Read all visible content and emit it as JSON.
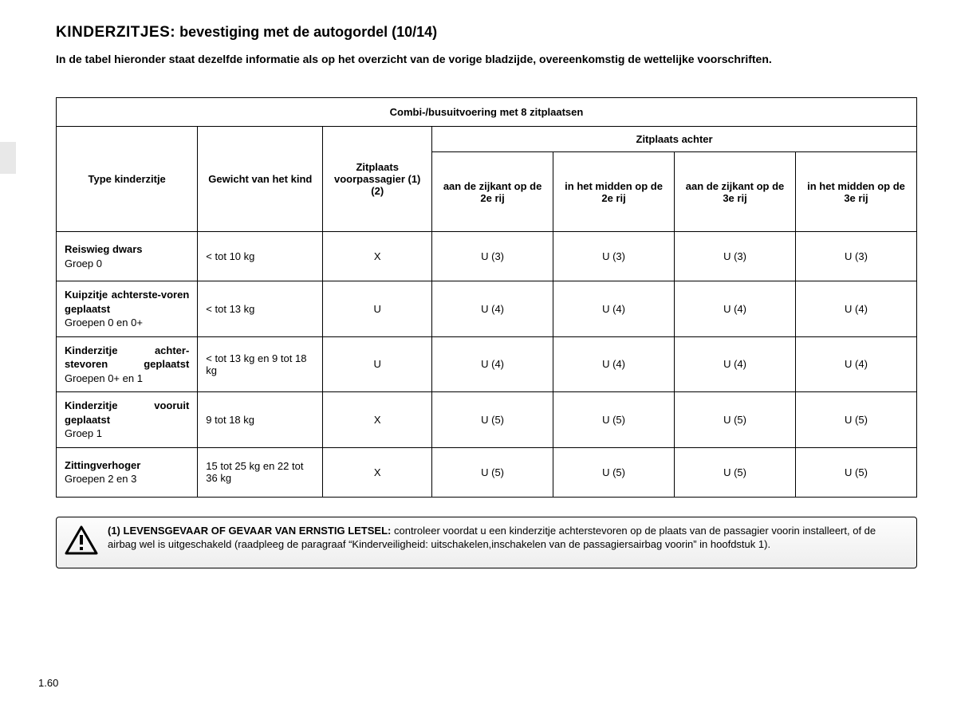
{
  "title": {
    "bold": "KINDERZITJES:",
    "rest": " bevestiging met de autogordel (10/14)"
  },
  "intro": "In de tabel hieronder staat dezelfde informatie als op het overzicht van de vorige bladzijde, overeenkomstig de wettelijke voorschriften.",
  "table": {
    "caption": "Combi-/busuitvoering met 8 zitplaatsen",
    "headers": {
      "type": "Type kinderzitje",
      "weight": "Gewicht van het kind",
      "front": "Zitplaats voorpassagier (1) (2)",
      "rear_group": "Zitplaats achter",
      "rear": [
        "aan de zijkant op de 2e rij",
        "in het midden op de 2e rij",
        "aan de zijkant op de 3e rij",
        "in het midden op de 3e rij"
      ]
    },
    "rows": [
      {
        "type_bold": "Reiswieg dwars",
        "type_sub": "Groep 0",
        "justify": false,
        "weight": "< tot 10 kg",
        "front": "X",
        "rear": [
          "U (3)",
          "U (3)",
          "U (3)",
          "U (3)"
        ]
      },
      {
        "type_bold": "Kuipzitje achterste-voren geplaatst",
        "type_sub": "Groepen 0 en 0+",
        "justify": true,
        "weight": "< tot 13 kg",
        "front": "U",
        "rear": [
          "U (4)",
          "U (4)",
          "U (4)",
          "U (4)"
        ]
      },
      {
        "type_bold": "Kinderzitje achter-stevoren geplaatst",
        "type_sub": "Groepen 0+ en 1",
        "justify": true,
        "weight": "< tot 13 kg en 9 tot 18 kg",
        "front": "U",
        "rear": [
          "U (4)",
          "U (4)",
          "U (4)",
          "U (4)"
        ]
      },
      {
        "type_bold": "Kinderzitje vooruit geplaatst",
        "type_sub": "Groep 1",
        "justify": true,
        "weight": "9 tot 18 kg",
        "front": "X",
        "rear": [
          "U (5)",
          "U (5)",
          "U (5)",
          "U (5)"
        ]
      },
      {
        "type_bold": "Zittingverhoger",
        "type_sub": "Groepen 2 en 3",
        "justify": false,
        "weight": "15 tot 25 kg en 22 tot 36 kg",
        "front": "X",
        "rear": [
          "U (5)",
          "U (5)",
          "U (5)",
          "U (5)"
        ]
      }
    ]
  },
  "warning": {
    "lead": "(1) LEVENSGEVAAR OF GEVAAR VAN ERNSTIG LETSEL:",
    "body": " controleer voordat u een kinderzitje achterstevoren op de plaats van de passagier voorin installeert, of de airbag wel is uitgeschakeld (raadpleeg de paragraaf “Kinderveiligheid: uitschakelen,inschakelen van de passagiersairbag voorin” in hoofdstuk 1)."
  },
  "page_number": "1.60",
  "colors": {
    "text": "#000000",
    "border": "#000000",
    "tab": "#e8e8e8",
    "warn_grad_top": "#fdfdfd",
    "warn_grad_bottom": "#eeeeee"
  }
}
